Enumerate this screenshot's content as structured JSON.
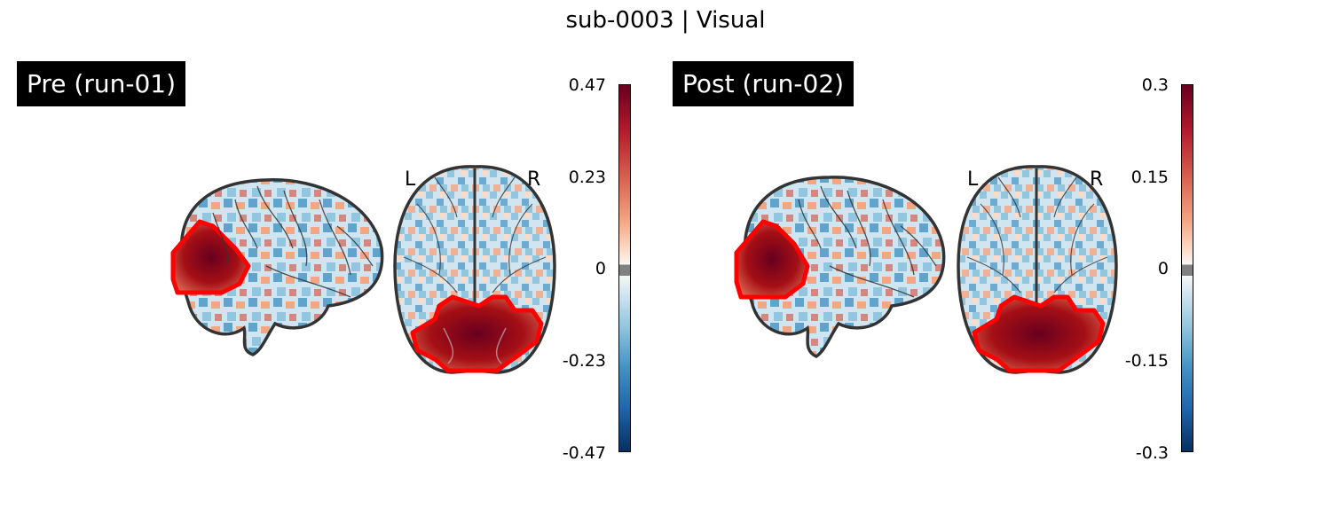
{
  "figure": {
    "title": "sub-0003 | Visual",
    "panels": [
      {
        "label": "Pre (run-01)",
        "colorbar": {
          "max": "0.47",
          "upper": "0.23",
          "mid": "0",
          "lower": "-0.23",
          "min": "-0.47"
        },
        "orientation": {
          "left": "L",
          "right": "R"
        }
      },
      {
        "label": "Post (run-02)",
        "colorbar": {
          "max": "0.3",
          "upper": "0.15",
          "mid": "0",
          "lower": "-0.15",
          "min": "-0.3"
        },
        "orientation": {
          "left": "L",
          "right": "R"
        }
      }
    ],
    "colormap": "RdBu_r",
    "roi_outline_color": "#ff0000",
    "brain_outline_color": "#333333"
  }
}
